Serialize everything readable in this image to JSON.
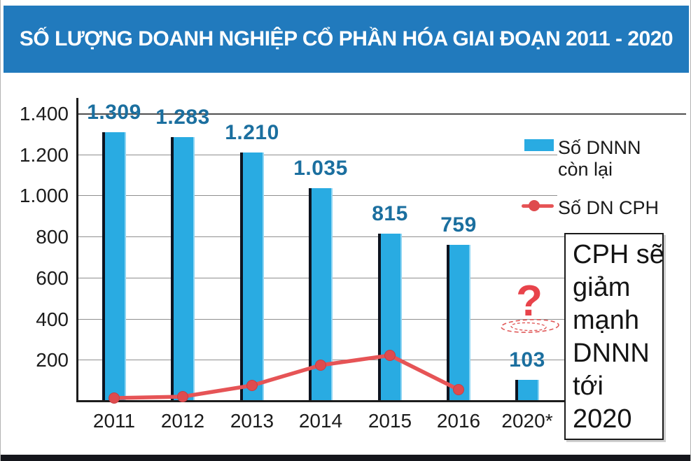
{
  "header": {
    "title": "SỐ LƯỢNG DOANH NGHIỆP CỔ PHẦN HÓA GIAI ĐOẠN 2011 - 2020"
  },
  "legend": {
    "bar_series_line1": "Số DNNN",
    "bar_series_line2": "còn lại",
    "line_series": "Số DN CPH"
  },
  "note_box": {
    "text": "CPH sẽ giảm mạnh DNNN tới 2020",
    "lines": [
      "CPH sẽ",
      "giảm",
      "mạnh",
      "DNNN",
      "tới",
      "2020"
    ]
  },
  "annotation": {
    "question_mark": "?"
  },
  "colors": {
    "header_bg": "#217abd",
    "bar_fill": "#29abe2",
    "bar_edge_dark": "#0d1420",
    "line_red": "#e65456",
    "value_label_blue": "#1b6f9f",
    "grid_gray": "#8f8f8f",
    "axis_black": "#1c1c1c",
    "question_mark_red": "#e8434b"
  },
  "chart_data": {
    "type": "bar",
    "title": "SỐ LƯỢNG DOANH NGHIỆP CỔ PHẦN HÓA GIAI ĐOẠN 2011 - 2020",
    "categories": [
      "2011",
      "2012",
      "2013",
      "2014",
      "2015",
      "2016",
      "2020*"
    ],
    "series": [
      {
        "name": "Số DNNN còn lại",
        "type": "bar",
        "values": [
          1309,
          1283,
          1210,
          1035,
          815,
          759,
          103
        ],
        "value_labels": [
          "1.309",
          "1.283",
          "1.210",
          "1.035",
          "815",
          "759",
          "103"
        ],
        "color": "#29abe2"
      },
      {
        "name": "Số DN CPH",
        "type": "line",
        "values": [
          12,
          20,
          74,
          175,
          220,
          55
        ],
        "color": "#e65456"
      }
    ],
    "ylim": [
      0,
      1400
    ],
    "yticks": {
      "values": [
        1400,
        1200,
        1000,
        800,
        600,
        400,
        200
      ],
      "labels": [
        "1.400",
        "1.200",
        "1.000",
        "800",
        "600",
        "400",
        "200"
      ]
    },
    "grid": true,
    "legend_position": "upper right"
  }
}
